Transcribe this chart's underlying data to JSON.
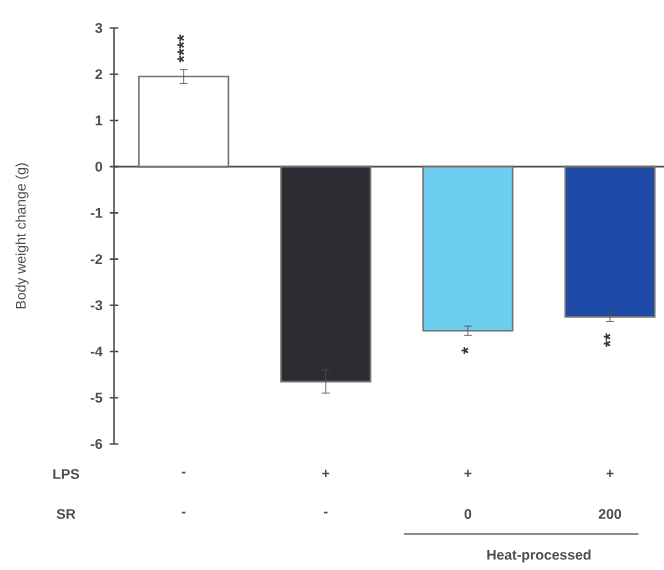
{
  "chart_data": {
    "type": "bar",
    "ylabel": "Body weight change (g)",
    "categories": [
      null,
      null,
      null,
      null
    ],
    "values": [
      1.95,
      -4.65,
      -3.55,
      -3.25
    ],
    "errors": [
      0.15,
      0.25,
      0.1,
      0.1
    ],
    "colors": [
      "#ffffff",
      "#2b2d33",
      "#6ccff0",
      "#1f4aa8"
    ],
    "ylim": [
      -6,
      3
    ],
    "yticks": [
      -6,
      -5,
      -4,
      -3,
      -2,
      -1,
      0,
      1,
      2,
      3
    ],
    "annotations": [
      "****",
      "*",
      "**",
      "LPS",
      "-",
      "+",
      "+",
      "+",
      "SR",
      "-",
      "-",
      "0",
      "200",
      "Heat-processed"
    ]
  }
}
